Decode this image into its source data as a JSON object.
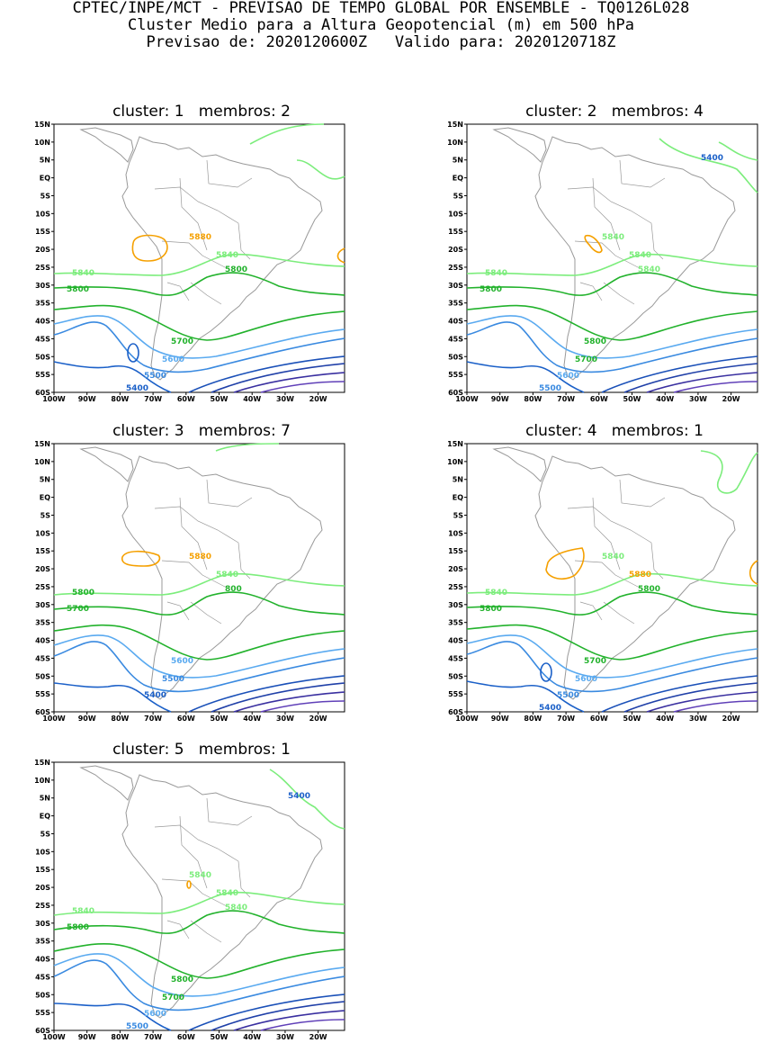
{
  "header": {
    "line1": "CPTEC/INPE/MCT - PREVISAO DE TEMPO GLOBAL POR ENSEMBLE - TQ0126L028",
    "line2": "Cluster Medio para a Altura Geopotencial (m) em 500 hPa",
    "line3": "Previsao de: 2020120600Z   Valido para: 2020120718Z"
  },
  "axes": {
    "lat_ticks": [
      "15N",
      "10N",
      "5N",
      "EQ",
      "5S",
      "10S",
      "15S",
      "20S",
      "25S",
      "30S",
      "35S",
      "40S",
      "45S",
      "50S",
      "55S",
      "60S"
    ],
    "lon_ticks": [
      "100W",
      "90W",
      "80W",
      "70W",
      "60W",
      "50W",
      "40W",
      "30W",
      "20W"
    ],
    "lat_range": [
      -60,
      15
    ],
    "lon_range": [
      -100,
      -12
    ]
  },
  "colors": {
    "c5880": "#f5a000",
    "c5840": "#7ced7c",
    "c5800": "#22b22c",
    "c5700": "#22b22c",
    "c5600": "#5aaaf0",
    "c5500": "#3a8ae0",
    "c5400": "#1b60c8",
    "low1": "#1a50b8",
    "low2": "#2040a8",
    "low3": "#3a30a0",
    "low4": "#6040b8",
    "map": "#999999"
  },
  "panels": [
    {
      "title": "cluster: 1   membros: 2",
      "labels": [
        "5880",
        "5840",
        "5840",
        "5800",
        "5800",
        "5700",
        "5600",
        "5500",
        "5400"
      ]
    },
    {
      "title": "cluster: 2   membros: 4",
      "labels": [
        "5840",
        "5840",
        "5840",
        "5840",
        "5800",
        "5800",
        "5700",
        "5600",
        "5500",
        "5400"
      ]
    },
    {
      "title": "cluster: 3   membros: 7",
      "labels": [
        "5880",
        "5840",
        "5800",
        "800",
        "5700",
        "5600",
        "5500",
        "5400"
      ]
    },
    {
      "title": "cluster: 4   membros: 1",
      "labels": [
        "5840",
        "5880",
        "5840",
        "5800",
        "5800",
        "5700",
        "5600",
        "5500",
        "5400"
      ]
    },
    {
      "title": "cluster: 5   membros: 1",
      "labels": [
        "5840",
        "5840",
        "5840",
        "5840",
        "5800",
        "5800",
        "5700",
        "5600",
        "5500",
        "5400"
      ]
    }
  ]
}
